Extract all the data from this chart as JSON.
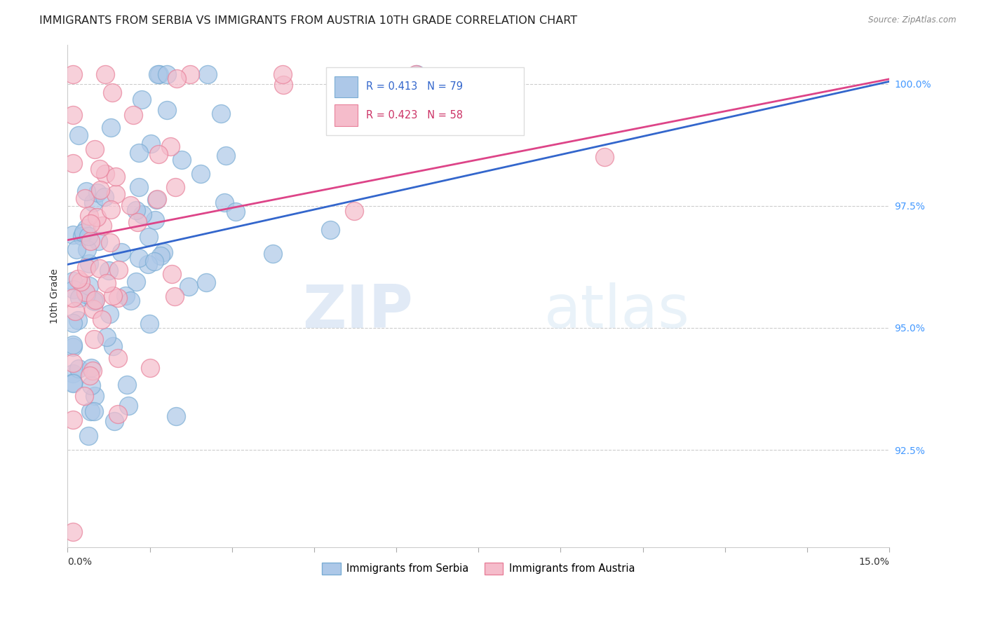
{
  "title": "IMMIGRANTS FROM SERBIA VS IMMIGRANTS FROM AUSTRIA 10TH GRADE CORRELATION CHART",
  "source": "Source: ZipAtlas.com",
  "ylabel": "10th Grade",
  "yaxis_labels": [
    "100.0%",
    "97.5%",
    "95.0%",
    "92.5%"
  ],
  "yaxis_values": [
    1.0,
    0.975,
    0.95,
    0.925
  ],
  "xlim": [
    0.0,
    0.15
  ],
  "ylim": [
    0.905,
    1.008
  ],
  "serbia_color": "#adc8e8",
  "serbia_edge": "#7aadd4",
  "austria_color": "#f5bccb",
  "austria_edge": "#e8809a",
  "serbia_line_color": "#3366cc",
  "austria_line_color": "#dd4488",
  "serbia_R": 0.413,
  "serbia_N": 79,
  "austria_R": 0.423,
  "austria_N": 58,
  "watermark_zip": "ZIP",
  "watermark_atlas": "atlas",
  "grid_color": "#cccccc",
  "title_fontsize": 11.5,
  "label_fontsize": 10,
  "tick_fontsize": 10
}
